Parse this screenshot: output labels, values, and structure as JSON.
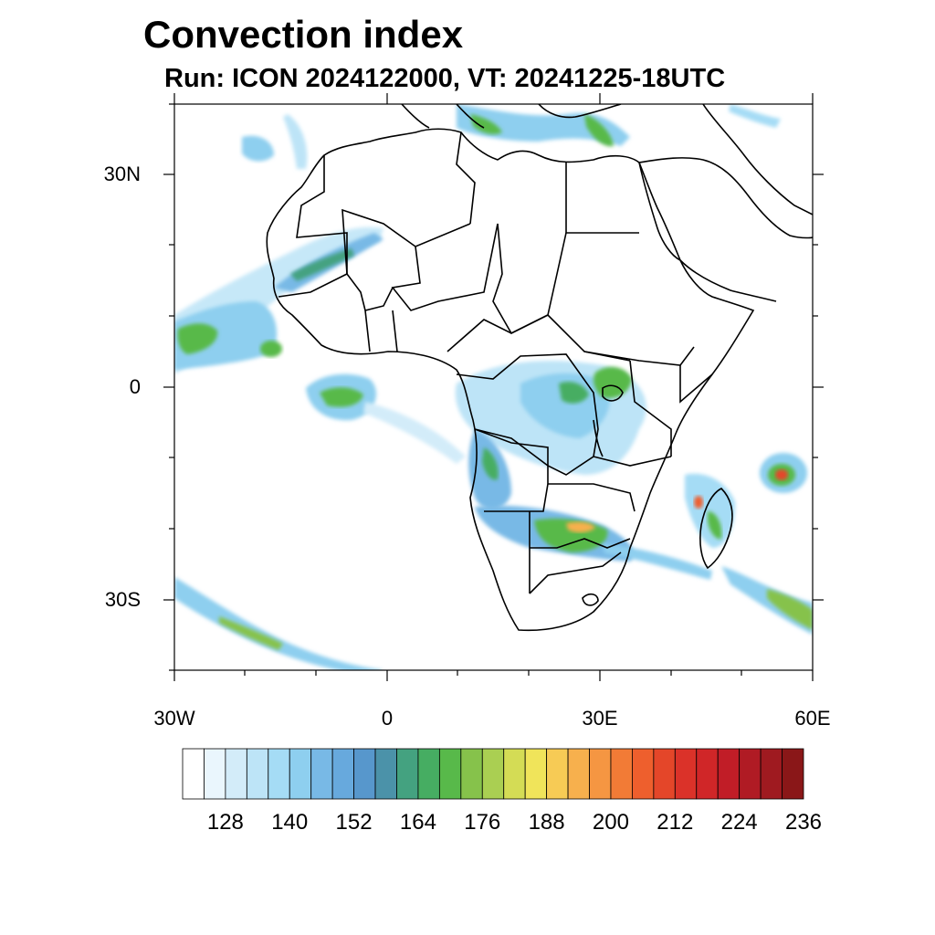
{
  "title": "Convection index",
  "subtitle": "Run: ICON 2024122000,  VT: 20241225-18UTC",
  "lat_labels": [
    "30N",
    "0",
    "30S"
  ],
  "lon_labels": [
    "30W",
    "0",
    "30E",
    "60E"
  ],
  "colorbar": {
    "labels": [
      "128",
      "140",
      "152",
      "164",
      "176",
      "188",
      "200",
      "212",
      "224",
      "236"
    ],
    "colors": [
      "#ffffff",
      "#eaf6fd",
      "#d3ecf9",
      "#bde4f7",
      "#a5dcf5",
      "#8ecfef",
      "#78b9e6",
      "#67a9dd",
      "#5797cc",
      "#4b92a9",
      "#44a280",
      "#46ad62",
      "#58b94a",
      "#86c24b",
      "#aacf52",
      "#d4dc55",
      "#f0e45a",
      "#f7cb55",
      "#f7b04d",
      "#f59642",
      "#f27b36",
      "#ee5f2d",
      "#e44629",
      "#db3229",
      "#d02628",
      "#c11d27",
      "#b01b24",
      "#9f1a20",
      "#8a1718"
    ]
  },
  "map": {
    "extent": {
      "lon": [
        -30,
        60
      ],
      "lat": [
        -40,
        40
      ]
    },
    "projection": "cylindrical",
    "variable": "convection index"
  }
}
